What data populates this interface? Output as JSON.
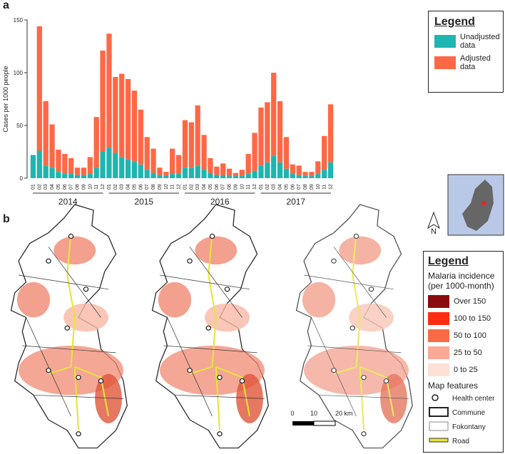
{
  "panel_a_label": "a",
  "chart_data": {
    "type": "stacked_bar",
    "ylabel": "Cases per 1000 people",
    "legend_title": "Legend",
    "categories": [
      "01",
      "02",
      "03",
      "04",
      "05",
      "06",
      "07",
      "08",
      "09",
      "10",
      "11",
      "12",
      "01",
      "02",
      "03",
      "04",
      "05",
      "06",
      "07",
      "08",
      "09",
      "10",
      "11",
      "12",
      "01",
      "02",
      "03",
      "04",
      "05",
      "06",
      "07",
      "08",
      "09",
      "10",
      "11",
      "12",
      "01",
      "02",
      "03",
      "04",
      "05",
      "06",
      "07",
      "08",
      "09",
      "10",
      "11",
      "12"
    ],
    "groups": [
      "2014",
      "2015",
      "2016",
      "2017"
    ],
    "ylim": [
      0,
      150
    ],
    "yticks": [
      0,
      50,
      100,
      150
    ],
    "series": [
      {
        "name": "Unadjusted data",
        "color": "#1fb5b0",
        "values": [
          22,
          26,
          12,
          10,
          6,
          4,
          4,
          3,
          3,
          4,
          10,
          25,
          29,
          24,
          20,
          18,
          16,
          13,
          8,
          5,
          3,
          2,
          4,
          4,
          10,
          10,
          12,
          8,
          5,
          3,
          3,
          2,
          2,
          2,
          4,
          7,
          12,
          15,
          21,
          15,
          9,
          4,
          3,
          2,
          2,
          4,
          8,
          15
        ]
      },
      {
        "name": "Adjusted data",
        "color": "#ff6845",
        "values": [
          0,
          118,
          61,
          41,
          21,
          19,
          15,
          7,
          7,
          16,
          48,
          96,
          108,
          72,
          79,
          76,
          67,
          52,
          31,
          23,
          7,
          4,
          24,
          18,
          45,
          43,
          57,
          33,
          14,
          8,
          11,
          7,
          3,
          6,
          19,
          36,
          55,
          57,
          79,
          58,
          30,
          9,
          9,
          4,
          4,
          12,
          32,
          55
        ]
      }
    ]
  },
  "panel_b_label": "b",
  "north": "N",
  "scale": {
    "ticks": [
      "0",
      "10",
      "20 km"
    ]
  },
  "map_legend": {
    "title": "Legend",
    "incidence_title": "Malaria incidence (per 1000-month)",
    "classes": [
      {
        "label": "Over 150",
        "color": "#8b0c0c"
      },
      {
        "label": "100 to 150",
        "color": "#ff2d12"
      },
      {
        "label": "50 to 100",
        "color": "#fa6b45"
      },
      {
        "label": "25 to 50",
        "color": "#f9a996"
      },
      {
        "label": "0 to 25",
        "color": "#fde0d6"
      }
    ],
    "features_title": "Map features",
    "features": [
      "Health center",
      "Commune",
      "Fokontany",
      "Road"
    ]
  }
}
